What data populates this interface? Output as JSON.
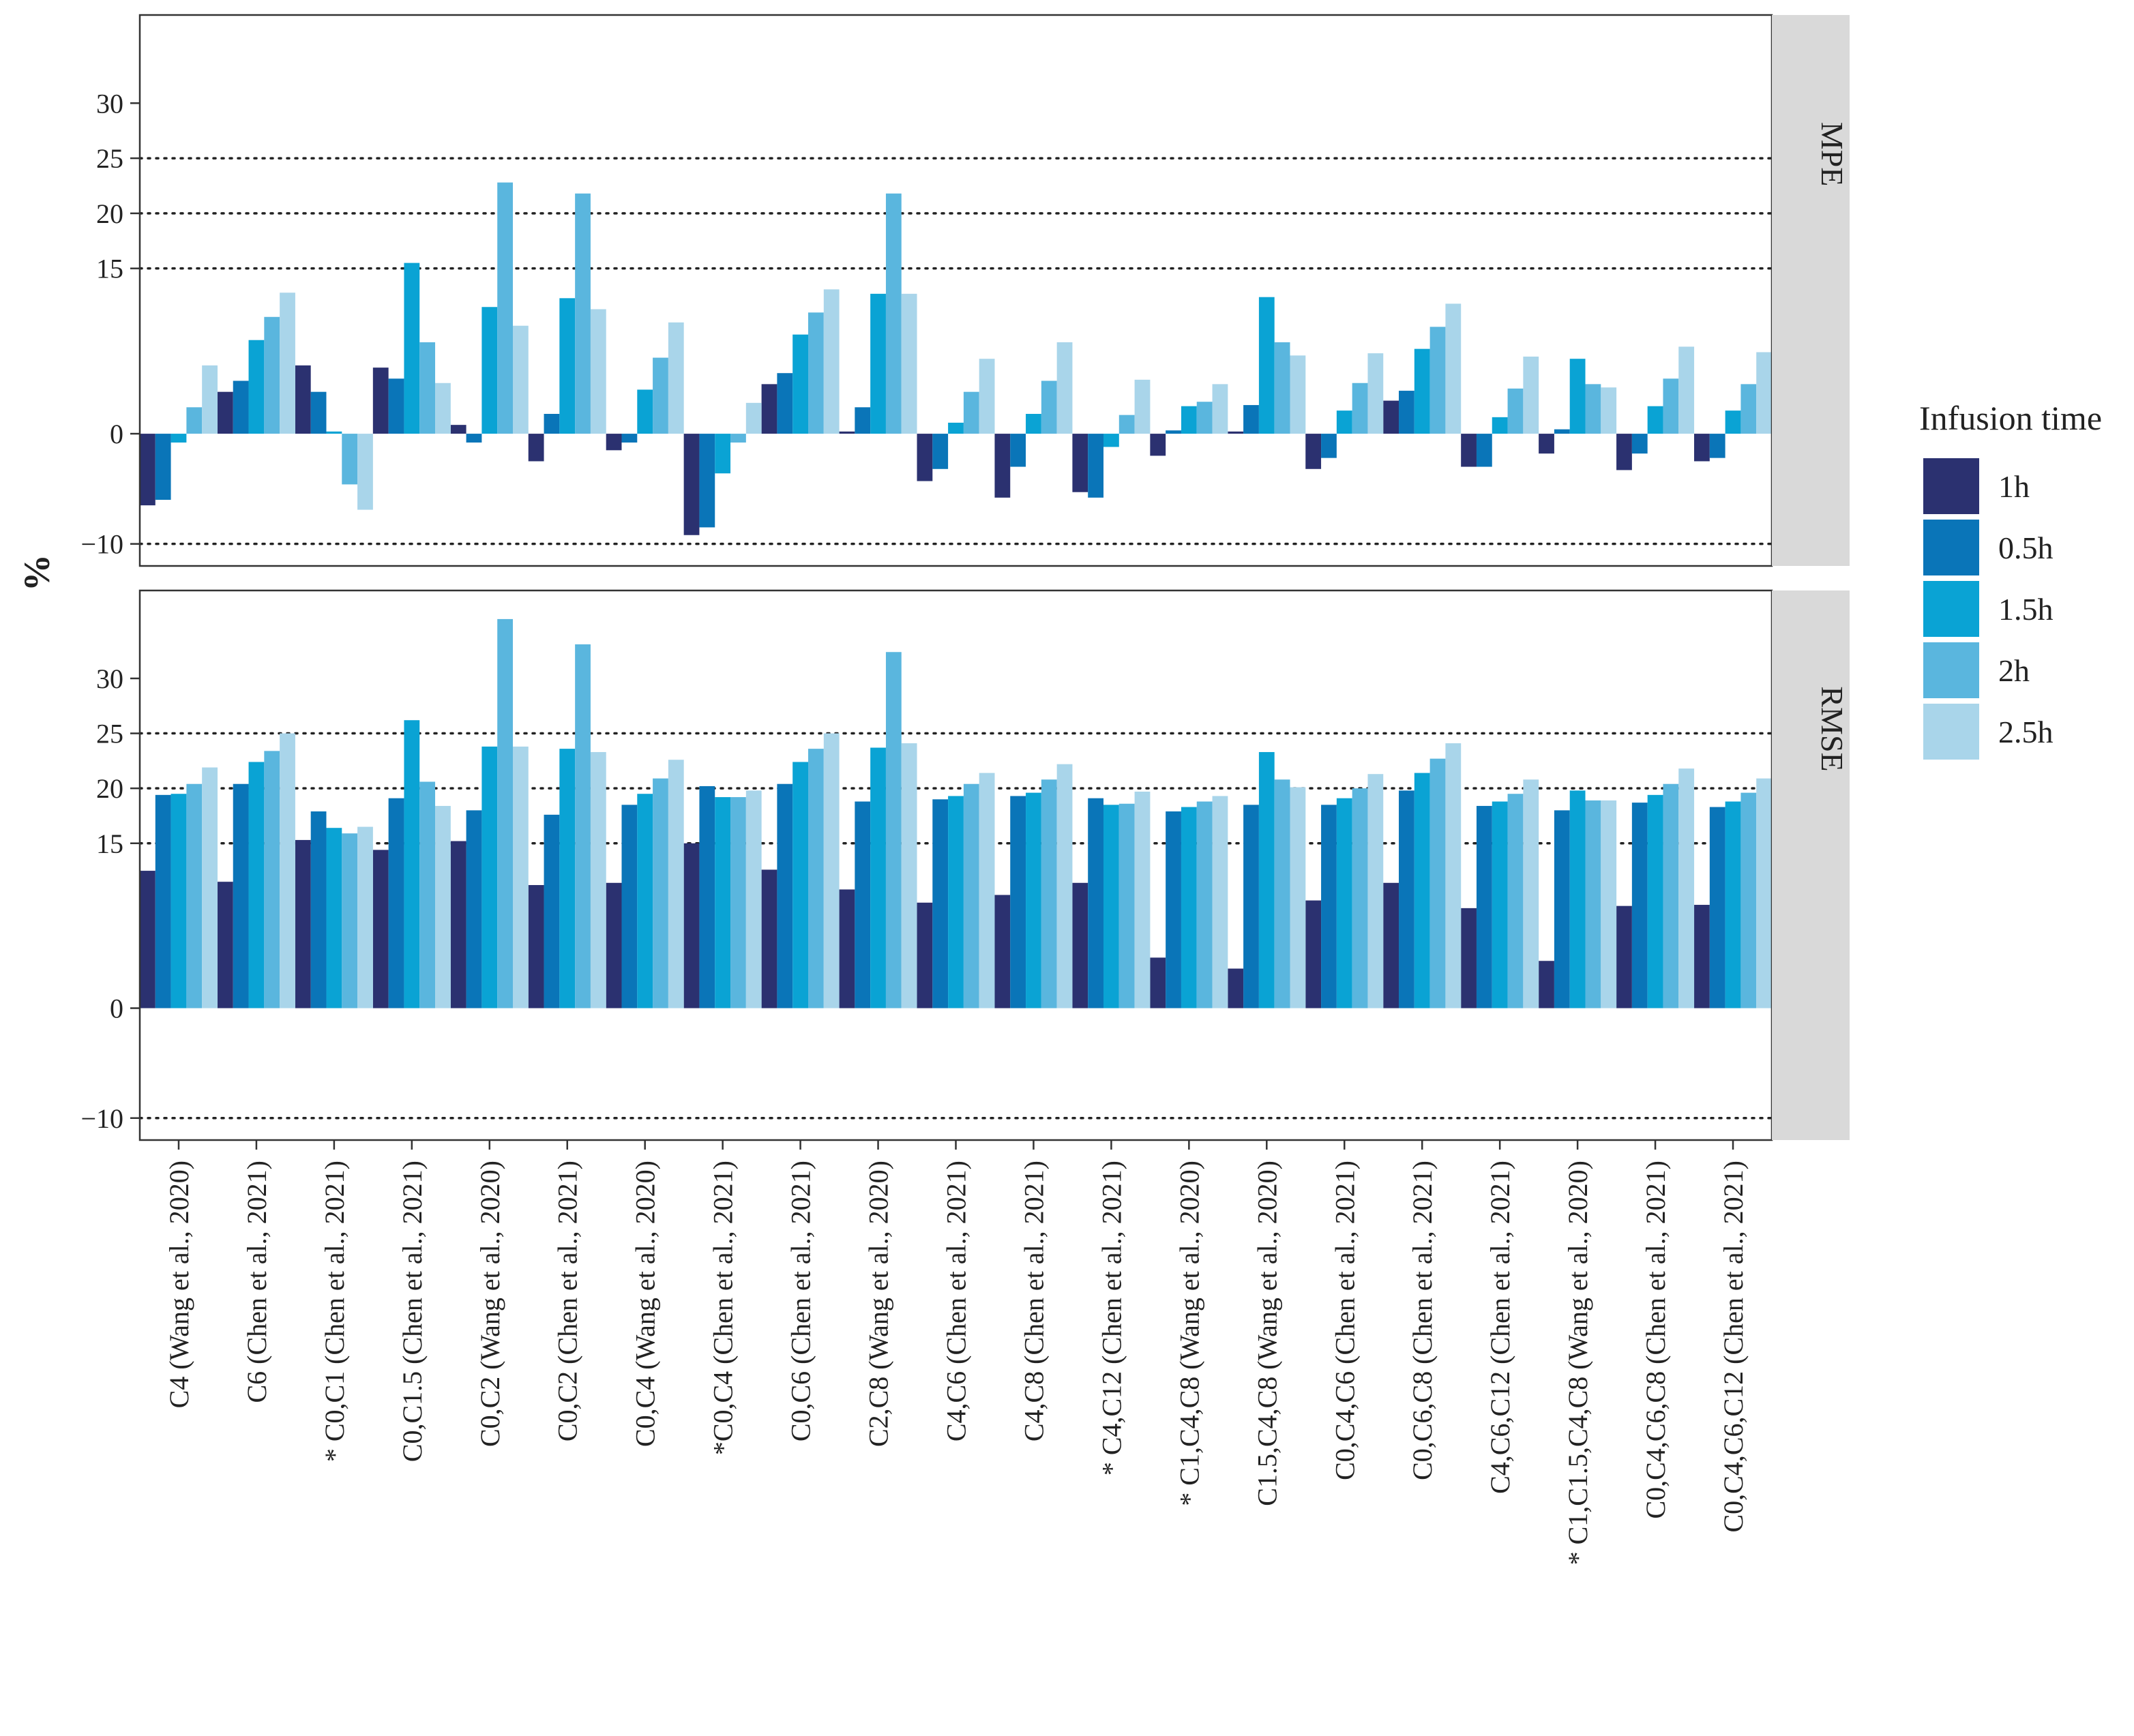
{
  "chart_data": {
    "type": "bar",
    "ylabel": "%",
    "ylim": [
      -12,
      38
    ],
    "yticks": [
      -10,
      0,
      15,
      20,
      25,
      30
    ],
    "reference_lines": [
      -10,
      15,
      20,
      25
    ],
    "legend": {
      "title": "Infusion time",
      "position": "right"
    },
    "colors": [
      "#2b3170",
      "#0a75b8",
      "#0aa3d4",
      "#5ab6de",
      "#a9d5ea"
    ],
    "categories": [
      "C4 (Wang et al., 2020)",
      "C6 (Chen et al., 2021)",
      "* C0,C1 (Chen et al., 2021)",
      "C0,C1.5 (Chen et al., 2021)",
      "C0,C2 (Wang et al., 2020)",
      "C0,C2 (Chen et al., 2021)",
      "C0,C4 (Wang et al., 2020)",
      "*C0,C4 (Chen et al., 2021)",
      "C0,C6 (Chen et al., 2021)",
      "C2,C8 (Wang et al., 2020)",
      "C4,C6 (Chen et al., 2021)",
      "C4,C8 (Chen et al., 2021)",
      "* C4,C12 (Chen et al., 2021)",
      "* C1,C4,C8 (Wang et al., 2020)",
      "C1.5,C4,C8 (Wang et al., 2020)",
      "C0,C4,C6 (Chen et al., 2021)",
      "C0,C6,C8 (Chen et al., 2021)",
      "C4,C6,C12 (Chen et al., 2021)",
      "* C1,C1.5,C4,C8 (Wang et al., 2020)",
      "C0,C4,C6,C8 (Chen et al., 2021)",
      "C0,C4,C6,C12 (Chen et al., 2021)"
    ],
    "panels": [
      {
        "label": "MPE",
        "series": [
          {
            "name": "1h",
            "values": [
              -6.5,
              3.8,
              6.2,
              6.0,
              0.8,
              -2.5,
              -1.5,
              -9.2,
              4.5,
              0.2,
              -4.3,
              -5.8,
              -5.3,
              -2.0,
              0.2,
              -3.2,
              3.0,
              -3.0,
              -1.8,
              -3.3,
              -2.5
            ]
          },
          {
            "name": "0.5h",
            "values": [
              -6.0,
              4.8,
              3.8,
              5.0,
              -0.8,
              1.8,
              -0.8,
              -8.5,
              5.5,
              2.4,
              -3.2,
              -3.0,
              -5.8,
              0.3,
              2.6,
              -2.2,
              3.9,
              -3.0,
              0.4,
              -1.8,
              -2.2
            ]
          },
          {
            "name": "1.5h",
            "values": [
              -0.8,
              8.5,
              0.2,
              15.5,
              11.5,
              12.3,
              4.0,
              -3.6,
              9.0,
              12.7,
              1.0,
              1.8,
              -1.2,
              2.5,
              12.4,
              2.1,
              7.7,
              1.5,
              6.8,
              2.5,
              2.1
            ]
          },
          {
            "name": "2h",
            "values": [
              2.4,
              10.6,
              -4.6,
              8.3,
              22.8,
              21.8,
              6.9,
              -0.8,
              11.0,
              21.8,
              3.8,
              4.8,
              1.7,
              2.9,
              8.3,
              4.6,
              9.7,
              4.1,
              4.5,
              5.0,
              4.5
            ]
          },
          {
            "name": "2.5h",
            "values": [
              6.2,
              12.8,
              -6.9,
              4.6,
              9.8,
              11.3,
              10.1,
              2.8,
              13.1,
              12.7,
              6.8,
              8.3,
              4.9,
              4.5,
              7.1,
              7.3,
              11.8,
              7.0,
              4.2,
              7.9,
              7.4
            ]
          }
        ]
      },
      {
        "label": "RMSE",
        "series": [
          {
            "name": "1h",
            "values": [
              12.5,
              11.5,
              15.3,
              14.4,
              15.2,
              11.2,
              11.4,
              15.0,
              12.6,
              10.8,
              9.6,
              10.3,
              11.4,
              4.6,
              3.6,
              9.8,
              11.4,
              9.1,
              4.3,
              9.3,
              9.4
            ]
          },
          {
            "name": "0.5h",
            "values": [
              19.4,
              20.4,
              17.9,
              19.1,
              18.0,
              17.6,
              18.5,
              20.2,
              20.4,
              18.8,
              19.0,
              19.3,
              19.1,
              17.9,
              18.5,
              18.5,
              19.8,
              18.4,
              18.0,
              18.7,
              18.3
            ]
          },
          {
            "name": "1.5h",
            "values": [
              19.5,
              22.4,
              16.4,
              26.2,
              23.8,
              23.6,
              19.5,
              19.2,
              22.4,
              23.7,
              19.3,
              19.6,
              18.5,
              18.3,
              23.3,
              19.1,
              21.4,
              18.8,
              19.8,
              19.4,
              18.8
            ]
          },
          {
            "name": "2h",
            "values": [
              20.4,
              23.4,
              15.9,
              20.6,
              35.4,
              33.1,
              20.9,
              19.2,
              23.6,
              32.4,
              20.4,
              20.8,
              18.6,
              18.8,
              20.8,
              20.0,
              22.7,
              19.5,
              18.9,
              20.4,
              19.6
            ]
          },
          {
            "name": "2.5h",
            "values": [
              21.9,
              25.0,
              16.5,
              18.4,
              23.8,
              23.3,
              22.6,
              19.8,
              25.0,
              24.1,
              21.4,
              22.2,
              19.7,
              19.3,
              20.1,
              21.3,
              24.1,
              20.8,
              18.9,
              21.8,
              20.9
            ]
          }
        ]
      }
    ]
  }
}
